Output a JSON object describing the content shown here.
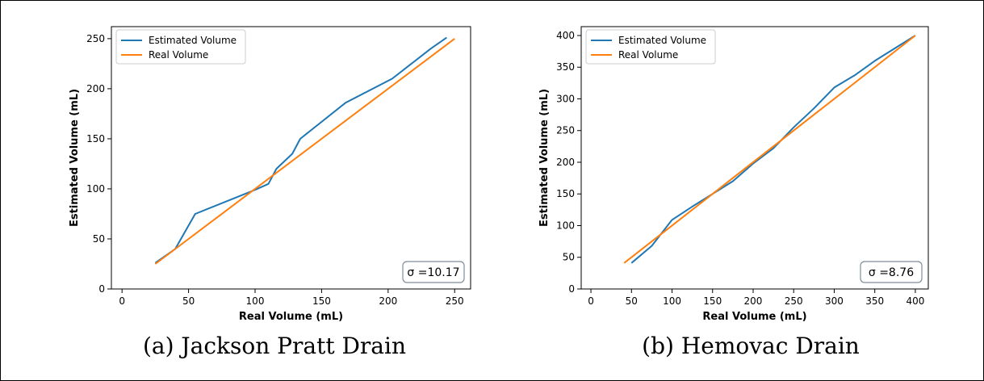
{
  "colors": {
    "estimated": "#1f77b4",
    "real": "#ff7f0e",
    "axis": "#000000",
    "annotation_border": "#7f8c9a"
  },
  "chart_data": [
    {
      "type": "line",
      "caption": "(a) Jackson Pratt Drain",
      "xlabel": "Real Volume (mL)",
      "ylabel": "Estimated Volume (mL)",
      "xlim": [
        -8,
        262
      ],
      "ylim": [
        0,
        262
      ],
      "xticks": [
        0,
        50,
        100,
        150,
        200,
        250
      ],
      "yticks": [
        0,
        50,
        100,
        150,
        200,
        250
      ],
      "legend_position": "top-left",
      "annotation": "σ =10.17",
      "series": [
        {
          "name": "Estimated Volume",
          "color_key": "estimated",
          "x": [
            25,
            40,
            55,
            100,
            110,
            116,
            128,
            134,
            168,
            203,
            232,
            244
          ],
          "y": [
            26,
            40,
            75,
            99,
            105,
            120,
            135,
            150,
            186,
            210,
            240,
            251
          ]
        },
        {
          "name": "Real Volume",
          "color_key": "real",
          "x": [
            25,
            250
          ],
          "y": [
            25,
            250
          ]
        }
      ]
    },
    {
      "type": "line",
      "caption": "(b) Hemovac Drain",
      "xlabel": "Real Volume (mL)",
      "ylabel": "Estimated Volume (mL)",
      "xlim": [
        -12,
        416
      ],
      "ylim": [
        0,
        414
      ],
      "xticks": [
        0,
        50,
        100,
        150,
        200,
        250,
        300,
        350,
        400
      ],
      "yticks": [
        0,
        50,
        100,
        150,
        200,
        250,
        300,
        350,
        400
      ],
      "legend_position": "top-left",
      "annotation": "σ =8.76",
      "series": [
        {
          "name": "Estimated Volume",
          "color_key": "estimated",
          "x": [
            50,
            75,
            100,
            125,
            150,
            175,
            200,
            225,
            250,
            275,
            300,
            325,
            350,
            400
          ],
          "y": [
            41,
            68,
            109,
            130,
            150,
            170,
            198,
            222,
            255,
            285,
            318,
            337,
            360,
            400
          ]
        },
        {
          "name": "Real Volume",
          "color_key": "real",
          "x": [
            41,
            400
          ],
          "y": [
            41,
            400
          ]
        }
      ]
    }
  ]
}
